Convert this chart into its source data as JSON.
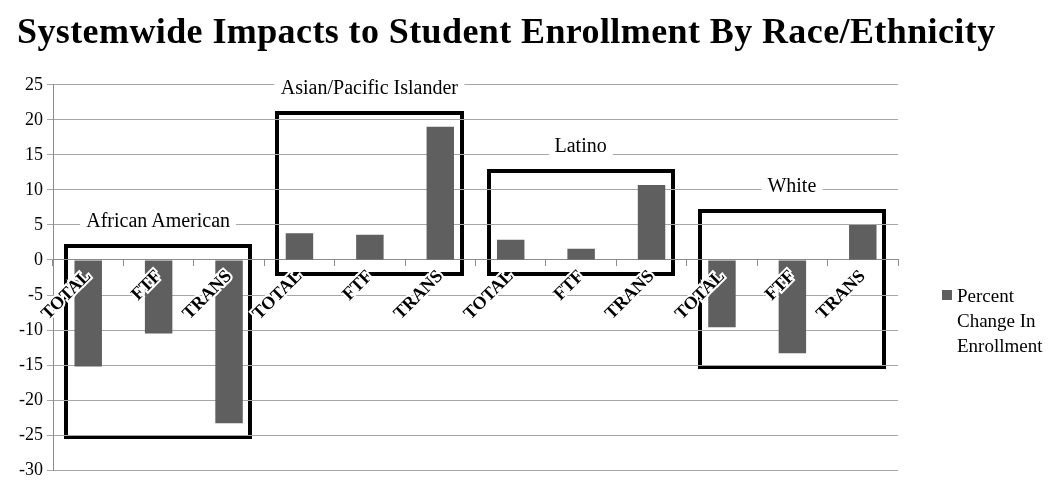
{
  "chart_data": {
    "type": "bar",
    "title": "Systemwide Impacts to Student Enrollment By Race/Ethnicity",
    "categories": [
      "TOTAL",
      "FTF",
      "TRANS",
      "TOTAL",
      "FTF",
      "TRANS",
      "TOTAL",
      "FTF",
      "TRANS",
      "TOTAL",
      "FTF",
      "TRANS"
    ],
    "series": [
      {
        "name": "Percent Change In Enrollment",
        "color": "#5f5f5f",
        "values": [
          -15.2,
          -10.5,
          -23.3,
          3.8,
          3.6,
          19.0,
          2.9,
          1.6,
          10.7,
          -9.6,
          -13.3,
          5.0
        ]
      }
    ],
    "ylim": [
      -30,
      25
    ],
    "yticks": [
      -30,
      -25,
      -20,
      -15,
      -10,
      -5,
      0,
      5,
      10,
      15,
      20,
      25
    ],
    "grid": "y",
    "legend": "right",
    "annotations": [
      "African American",
      "Asian/Pacific Islander",
      "Latino",
      "White"
    ]
  }
}
